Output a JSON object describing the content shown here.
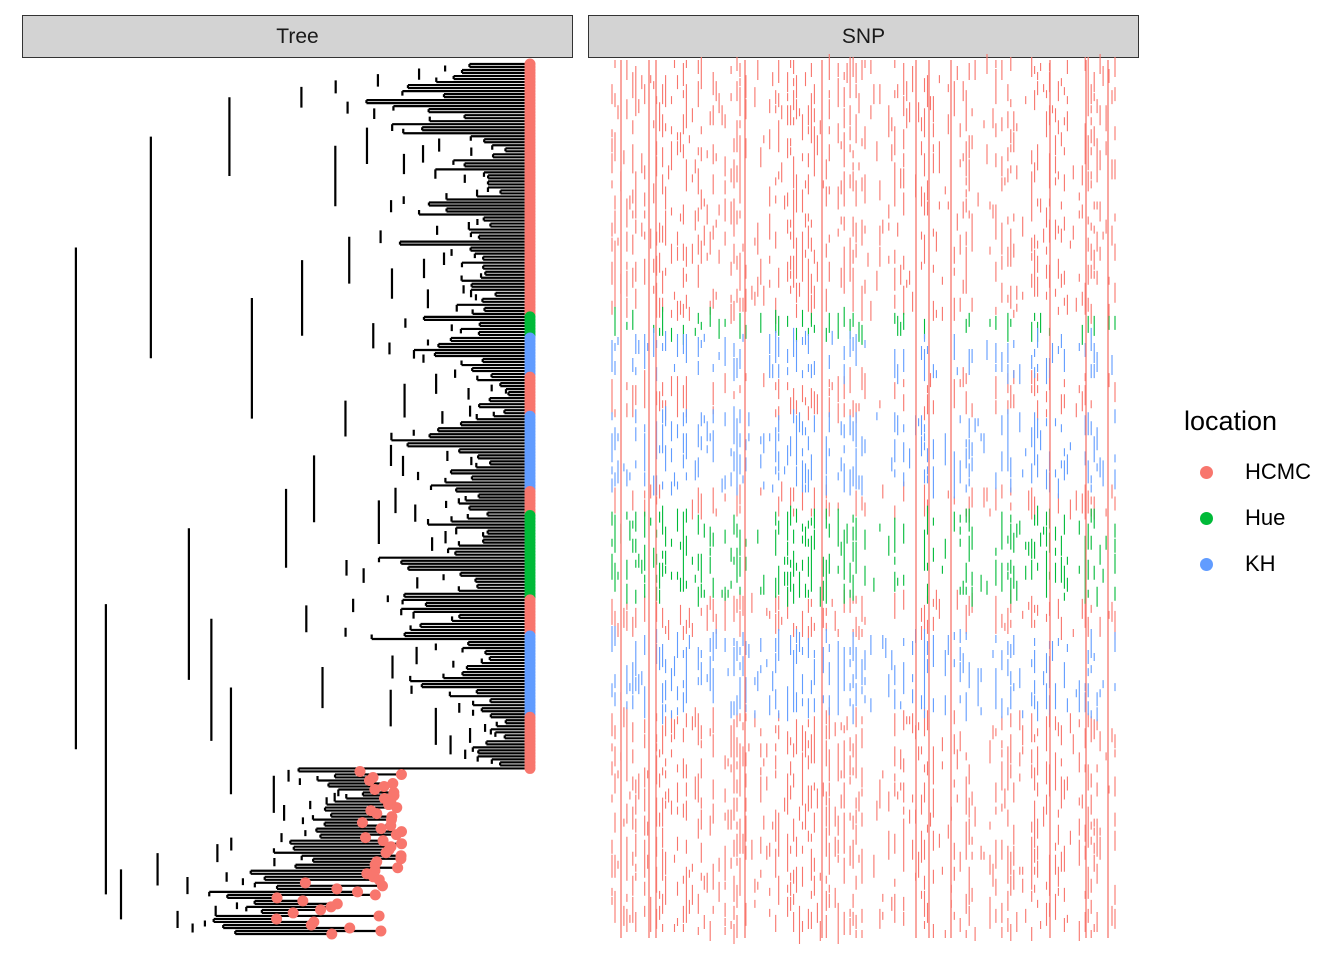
{
  "chart_data": {
    "type": "tree+heatmap",
    "panels": [
      {
        "title": "Tree",
        "type": "phylogenetic-tree"
      },
      {
        "title": "SNP",
        "type": "snp-matrix"
      }
    ],
    "legend": {
      "title": "location",
      "placement": "right",
      "entries": [
        {
          "label": "HCMC",
          "color": "#F8766D"
        },
        {
          "label": "Hue",
          "color": "#00BA38"
        },
        {
          "label": "KH",
          "color": "#619CFF"
        }
      ]
    },
    "tip_groups_top_to_bottom": [
      {
        "location": "HCMC",
        "count": 84
      },
      {
        "location": "Hue",
        "count": 7
      },
      {
        "location": "KH",
        "count": 13
      },
      {
        "location": "HCMC",
        "count": 13
      },
      {
        "location": "KH",
        "count": 25
      },
      {
        "location": "HCMC",
        "count": 8
      },
      {
        "location": "Hue",
        "count": 28
      },
      {
        "location": "HCMC",
        "count": 12
      },
      {
        "location": "KH",
        "count": 27
      },
      {
        "location": "HCMC",
        "count": 15
      },
      {
        "location": "HCMC",
        "count": 58
      }
    ],
    "snp_columns": 170
  }
}
